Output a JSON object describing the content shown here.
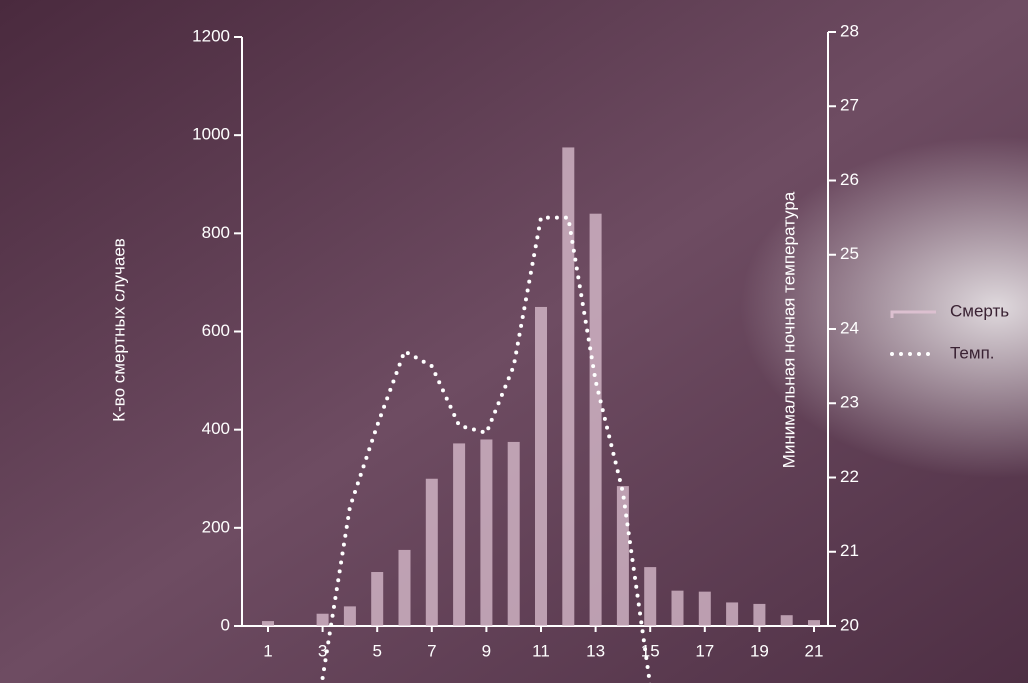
{
  "chart_data": {
    "type": "bar",
    "categories": [
      1,
      null,
      3,
      null,
      5,
      null,
      7,
      null,
      9,
      null,
      11,
      null,
      13,
      null,
      15,
      null,
      17,
      null,
      19,
      null,
      21
    ],
    "y_label": "К-во смертных случаев",
    "y2_label": "Минимальная ночная температура",
    "ylim": [
      0,
      1200
    ],
    "yticks": [
      0,
      200,
      400,
      600,
      800,
      1000,
      1200
    ],
    "y2lim": [
      20,
      28
    ],
    "y2ticks": [
      20,
      21,
      22,
      23,
      24,
      25,
      26,
      27,
      28
    ],
    "legend": "right",
    "series": [
      {
        "name": "Смерть",
        "type": "bar",
        "color": "#dcc0d0",
        "values": [
          10,
          0,
          25,
          40,
          110,
          155,
          300,
          372,
          380,
          375,
          650,
          975,
          840,
          285,
          120,
          72,
          70,
          48,
          45,
          22,
          12
        ]
      },
      {
        "name": "Темп.",
        "type": "line",
        "axis": "y2",
        "color": "#ffffff",
        "values": [
          null,
          null,
          19.3,
          21.6,
          22.7,
          23.7,
          23.5,
          22.7,
          22.6,
          23.5,
          25.5,
          25.5,
          23.3,
          21.8,
          19.2,
          null,
          null,
          null,
          null,
          null,
          null
        ]
      }
    ]
  }
}
